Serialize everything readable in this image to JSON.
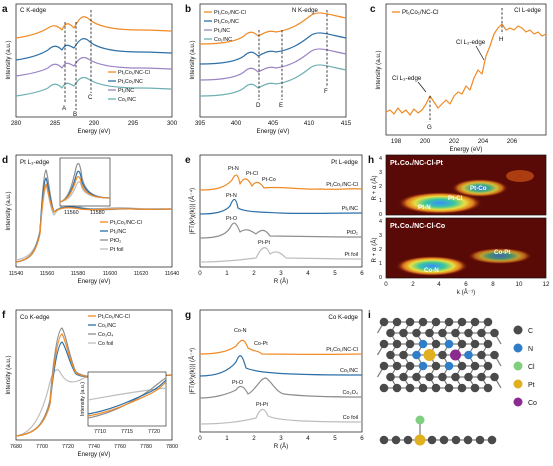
{
  "colors": {
    "pt_co_cl": "#F08A24",
    "pt_co": "#2D6FA6",
    "pt": "#9B84C4",
    "co": "#6FAFB2",
    "ref": "#BDBDBD",
    "ref_dark": "#8E8E8E",
    "atom_c": "#4a4a4a",
    "atom_n": "#2e7ec9",
    "atom_cl": "#7fcf7f",
    "atom_pt": "#e0b020",
    "atom_co": "#8a2b8f"
  },
  "panels": {
    "a": {
      "letter": "a",
      "edge": "C K-edge",
      "xlabel": "Energy (eV)",
      "ylabel": "Intensity (a.u.)",
      "ticks": [
        "280",
        "285",
        "290",
        "295",
        "300"
      ],
      "legend": [
        "Pt₁Co₁/NC-Cl",
        "Pt₁Co₁/NC",
        "Pt₁/NC",
        "Co₁/NC"
      ],
      "markers": [
        "A",
        "B",
        "C"
      ]
    },
    "b": {
      "letter": "b",
      "edge": "N K-edge",
      "xlabel": "Energy (eV)",
      "ylabel": "Intensity (a.u.)",
      "ticks": [
        "395",
        "400",
        "405",
        "410",
        "415"
      ],
      "legend": [
        "Pt₁Co₁/NC-Cl",
        "Pt₁Co₁/NC",
        "Pt₁/NC",
        "Co₁/NC"
      ],
      "markers": [
        "D",
        "E",
        "F"
      ]
    },
    "c": {
      "letter": "c",
      "edge": "Cl L-edge",
      "xlabel": "Energy (eV)",
      "ylabel": "Intensity (a.u.)",
      "ticks": [
        "198",
        "200",
        "202",
        "204",
        "206"
      ],
      "legend": [
        "Pt₁Co₁/NC-Cl"
      ],
      "annot_l3": "Cl L₃-edge",
      "annot_l2": "Cl L₂-edge",
      "markers": [
        "G",
        "H"
      ]
    },
    "d": {
      "letter": "d",
      "edge": "Pt L₃-edge",
      "xlabel": "Energy (eV)",
      "ylabel": "Intensity (a.u.)",
      "ticks": [
        "11540",
        "11560",
        "11580",
        "11600",
        "11620",
        "11640"
      ],
      "inset_ticks": [
        "11560",
        "11580"
      ],
      "legend": [
        "Pt₁Co₁/NC-Cl",
        "Pt₁/NC",
        "PtO₂",
        "Pt foil"
      ]
    },
    "e": {
      "letter": "e",
      "edge": "Pt L-edge",
      "xlabel": "R (Å)",
      "ylabel": "|FT(k³χ(k))| (Å⁻⁴)",
      "ticks": [
        "0",
        "1",
        "2",
        "3",
        "4",
        "5",
        "6"
      ],
      "labels": [
        "Pt₁Co₁/NC-Cl",
        "Pt₁/NC",
        "PtO₂",
        "Pt foil"
      ],
      "peaks": [
        "Pt-N",
        "Pt-Cl",
        "Pt-Co",
        "Pt-N",
        "Pt-O",
        "Pt-Pt"
      ]
    },
    "f": {
      "letter": "f",
      "edge": "Co K-edge",
      "xlabel": "Energy (eV)",
      "ylabel": "Intensity (a.u.)",
      "ticks": [
        "7680",
        "7700",
        "7720",
        "7740",
        "7760",
        "7780",
        "7800"
      ],
      "inset_ticks": [
        "7710",
        "7715",
        "7720"
      ],
      "inset_ylabel": "Intensity (a.u.)",
      "legend": [
        "Pt₁Co₁/NC-Cl",
        "Co₁/NC",
        "Co₃O₄",
        "Co foil"
      ]
    },
    "g": {
      "letter": "g",
      "edge": "Co K-edge",
      "xlabel": "R (Å)",
      "ylabel": "|FT(k³χ(k))| (Å⁻⁴)",
      "ticks": [
        "0",
        "1",
        "2",
        "3",
        "4",
        "5",
        "6"
      ],
      "labels": [
        "Pt₁Co₁/NC-Cl",
        "Co₁/NC",
        "Co₃O₄",
        "Co foil"
      ],
      "peaks": [
        "Co-N",
        "Co-Pt",
        "Pt-O",
        "Pt-Pt"
      ]
    },
    "h": {
      "letter": "h",
      "title_top": "Pt₁Co₁/NC-Cl-Pt",
      "title_bottom": "Pt₁Co₁/NC-Cl-Co",
      "top_labels": [
        "Pt-Co",
        "Pt-Cl",
        "Pt-N"
      ],
      "bottom_labels": [
        "Co-Pt",
        "Co-N"
      ],
      "xlabel": "k (Å⁻¹)",
      "ylabel": "R + α (Å)",
      "xticks": [
        "0",
        "2",
        "4",
        "6",
        "8",
        "10",
        "12"
      ],
      "yticks": [
        "4",
        "3",
        "2",
        "1",
        "0"
      ]
    },
    "i": {
      "letter": "i",
      "legend": [
        "C",
        "N",
        "Cl",
        "Pt",
        "Co"
      ]
    }
  }
}
